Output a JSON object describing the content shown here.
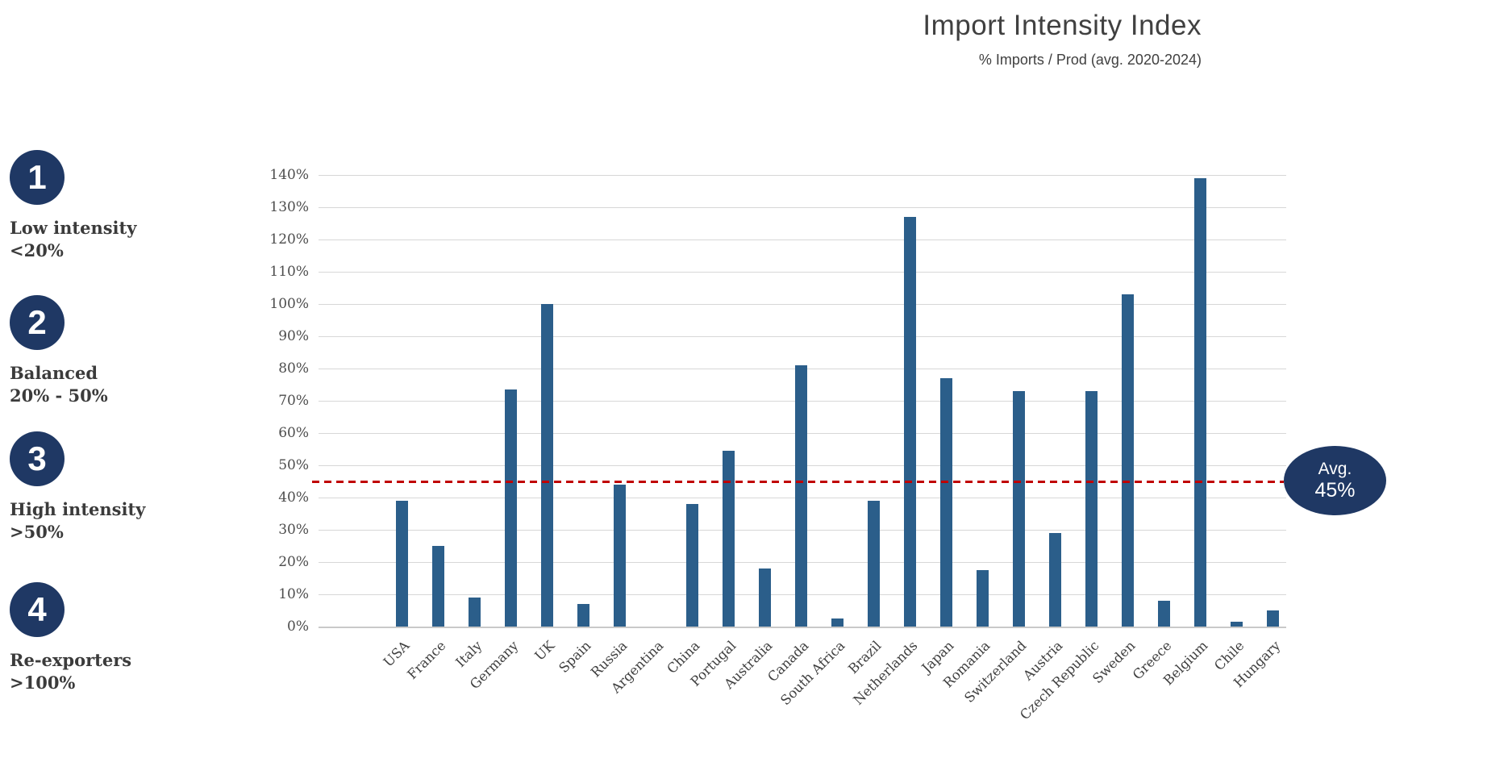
{
  "header": {
    "title": "Import Intensity Index",
    "subtitle": "% Imports / Prod (avg. 2020-2024)"
  },
  "legend": {
    "items": [
      {
        "number": "1",
        "label": "Low intensity",
        "range": "<20%"
      },
      {
        "number": "2",
        "label": "Balanced",
        "range": "20% - 50%"
      },
      {
        "number": "3",
        "label": "High intensity",
        "range": ">50%"
      },
      {
        "number": "4",
        "label": "Re-exporters",
        "range": ">100%"
      }
    ]
  },
  "avg_badge": {
    "line1": "Avg.",
    "line2": "45%"
  },
  "chart_data": {
    "type": "bar",
    "title": "Import Intensity Index",
    "subtitle": "% Imports / Prod (avg. 2020-2024)",
    "categories": [
      "USA",
      "France",
      "Italy",
      "Germany",
      "UK",
      "Spain",
      "Russia",
      "Argentina",
      "China",
      "Portugal",
      "Australia",
      "Canada",
      "South Africa",
      "Brazil",
      "Netherlands",
      "Japan",
      "Romania",
      "Switzerland",
      "Austria",
      "Czech Republic",
      "Sweden",
      "Greece",
      "Belgium",
      "Chile",
      "Hungary"
    ],
    "values": [
      39,
      25,
      9,
      73.5,
      100,
      7,
      44,
      0,
      38,
      54.5,
      18,
      81,
      2.5,
      39,
      127,
      77,
      17.5,
      73,
      29,
      73,
      103,
      8,
      139,
      1.5,
      5
    ],
    "ylim": [
      0,
      140
    ],
    "yticks": [
      0,
      10,
      20,
      30,
      40,
      50,
      60,
      70,
      80,
      90,
      100,
      110,
      120,
      130,
      140
    ],
    "ytick_suffix": "%",
    "grid": true,
    "bar_color": "#2B5E8A",
    "average_line": {
      "value": 45,
      "label": "Avg. 45%",
      "color": "#C00000",
      "style": "dashed"
    },
    "legend_position": "left"
  },
  "colors": {
    "bar": "#2B5E8A",
    "accent_navy": "#1F3864",
    "average_line_red": "#C00000",
    "gridline": "#D7D7D7",
    "text_dark": "#404040"
  }
}
